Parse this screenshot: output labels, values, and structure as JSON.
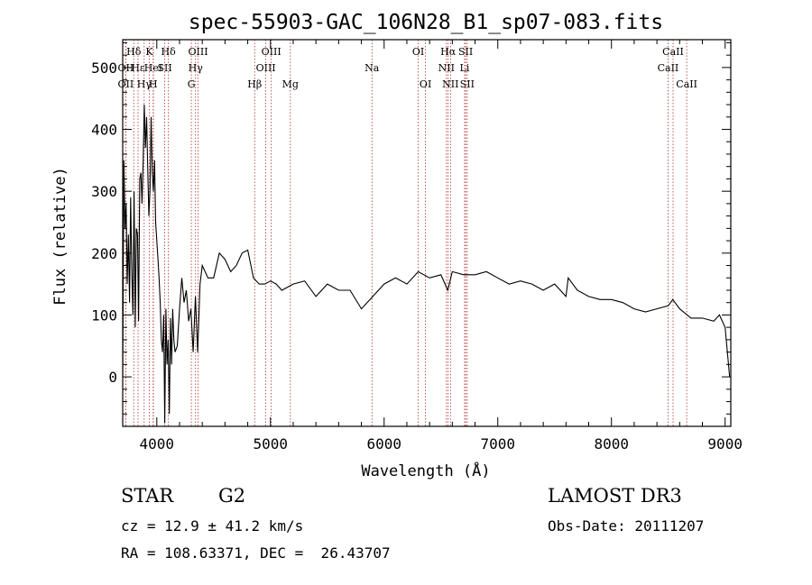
{
  "chart_data": {
    "type": "line",
    "title": "spec-55903-GAC_106N28_B1_sp07-083.fits",
    "xlabel": "Wavelength (Å)",
    "ylabel": "Flux (relative)",
    "xlim": [
      3700,
      9050
    ],
    "ylim": [
      -80,
      545
    ],
    "x_ticks": [
      4000,
      5000,
      6000,
      7000,
      8000,
      9000
    ],
    "y_ticks": [
      0,
      100,
      200,
      300,
      400,
      500
    ],
    "series": [
      {
        "x": [
          3700,
          3710,
          3720,
          3730,
          3740,
          3750,
          3760,
          3770,
          3780,
          3790,
          3800,
          3810,
          3820,
          3830,
          3840,
          3850,
          3860,
          3870,
          3880,
          3890,
          3900,
          3910,
          3920,
          3930,
          3940,
          3950,
          3960,
          3970,
          3980,
          3990,
          4000,
          4010,
          4020,
          4030,
          4040,
          4050,
          4060,
          4070,
          4080,
          4090,
          4100,
          4110,
          4120,
          4130,
          4140,
          4150,
          4160,
          4180,
          4200,
          4220,
          4240,
          4260,
          4280,
          4300,
          4320,
          4340,
          4360,
          4380,
          4400,
          4450,
          4500,
          4550,
          4600,
          4650,
          4700,
          4750,
          4800,
          4850,
          4900,
          4950,
          5000,
          5050,
          5100,
          5150,
          5200,
          5300,
          5400,
          5500,
          5600,
          5700,
          5800,
          5900,
          6000,
          6100,
          6200,
          6300,
          6400,
          6500,
          6560,
          6600,
          6700,
          6800,
          6900,
          7000,
          7100,
          7200,
          7300,
          7400,
          7500,
          7600,
          7620,
          7700,
          7800,
          7900,
          8000,
          8100,
          8200,
          8300,
          8400,
          8500,
          8540,
          8600,
          8700,
          8800,
          8900,
          8950,
          9000,
          9020,
          9040
        ],
        "y": [
          0,
          350,
          240,
          280,
          150,
          230,
          120,
          290,
          170,
          100,
          300,
          80,
          240,
          230,
          90,
          320,
          330,
          280,
          350,
          440,
          370,
          420,
          340,
          260,
          300,
          420,
          330,
          300,
          350,
          250,
          220,
          190,
          160,
          120,
          60,
          40,
          100,
          -75,
          110,
          20,
          60,
          -60,
          95,
          20,
          110,
          60,
          40,
          50,
          110,
          160,
          120,
          140,
          90,
          110,
          40,
          130,
          40,
          150,
          180,
          160,
          160,
          200,
          190,
          170,
          180,
          200,
          205,
          160,
          150,
          150,
          155,
          150,
          140,
          145,
          150,
          155,
          130,
          150,
          140,
          140,
          110,
          130,
          150,
          160,
          150,
          170,
          160,
          165,
          140,
          170,
          165,
          165,
          170,
          160,
          150,
          155,
          150,
          140,
          150,
          130,
          160,
          140,
          130,
          125,
          125,
          120,
          110,
          105,
          110,
          115,
          125,
          110,
          95,
          95,
          90,
          100,
          80,
          40,
          0
        ]
      }
    ],
    "lines": [
      {
        "label": "Hδ",
        "x": 3797,
        "row": 0
      },
      {
        "label": "OII",
        "x": 3727,
        "row": 1
      },
      {
        "label": "Hε",
        "x": 3835,
        "row": 1
      },
      {
        "label": "OII",
        "x": 3727,
        "row": 2
      },
      {
        "label": "Hγ",
        "x": 3889,
        "row": 2
      },
      {
        "label": "K",
        "x": 3934,
        "row": 0
      },
      {
        "label": "HeI",
        "x": 3970,
        "row": 1
      },
      {
        "label": "H",
        "x": 3968,
        "row": 2
      },
      {
        "label": "Hδ",
        "x": 4102,
        "row": 0
      },
      {
        "label": "SII",
        "x": 4070,
        "row": 1
      },
      {
        "label": "OIII",
        "x": 4363,
        "row": 0
      },
      {
        "label": "Hγ",
        "x": 4341,
        "row": 1
      },
      {
        "label": "G",
        "x": 4304,
        "row": 2
      },
      {
        "label": "Hβ",
        "x": 4861,
        "row": 2
      },
      {
        "label": "OIII",
        "x": 5007,
        "row": 0
      },
      {
        "label": "OIII",
        "x": 4959,
        "row": 1
      },
      {
        "label": "Mg",
        "x": 5175,
        "row": 2
      },
      {
        "label": "Na",
        "x": 5893,
        "row": 1
      },
      {
        "label": "OI",
        "x": 6300,
        "row": 0
      },
      {
        "label": "OI",
        "x": 6364,
        "row": 2
      },
      {
        "label": "Hα",
        "x": 6563,
        "row": 0
      },
      {
        "label": "NII",
        "x": 6548,
        "row": 1
      },
      {
        "label": "NII",
        "x": 6584,
        "row": 2
      },
      {
        "label": "SII",
        "x": 6717,
        "row": 0
      },
      {
        "label": "Li",
        "x": 6708,
        "row": 1
      },
      {
        "label": "SII",
        "x": 6731,
        "row": 2
      },
      {
        "label": "CaII",
        "x": 8542,
        "row": 0
      },
      {
        "label": "CaII",
        "x": 8498,
        "row": 1
      },
      {
        "label": "CaII",
        "x": 8662,
        "row": 2
      }
    ]
  },
  "info": {
    "object_type": "STAR",
    "subclass": "G2",
    "survey": "LAMOST DR3",
    "cz": "cz = 12.9 ± 41.2 km/s",
    "obs_date": "Obs-Date: 20111207",
    "coords": "RA = 108.63371, DEC =  26.43707"
  }
}
